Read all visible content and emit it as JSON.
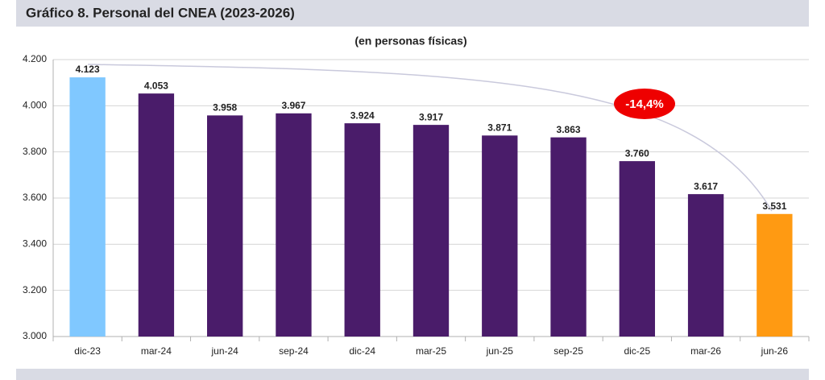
{
  "header": {
    "title": "Gráfico 8. Personal del CNEA (2023-2026)"
  },
  "chart_data": {
    "type": "bar",
    "title": "(en personas físicas)",
    "categories": [
      "dic-23",
      "mar-24",
      "jun-24",
      "sep-24",
      "dic-24",
      "mar-25",
      "jun-25",
      "sep-25",
      "dic-25",
      "mar-26",
      "jun-26"
    ],
    "values": [
      4123,
      4053,
      3958,
      3967,
      3924,
      3917,
      3871,
      3863,
      3760,
      3617,
      3531
    ],
    "value_labels": [
      "4.123",
      "4.053",
      "3.958",
      "3.967",
      "3.924",
      "3.917",
      "3.871",
      "3.863",
      "3.760",
      "3.617",
      "3.531"
    ],
    "colors": [
      "#80c8ff",
      "#4a1c6a",
      "#4a1c6a",
      "#4a1c6a",
      "#4a1c6a",
      "#4a1c6a",
      "#4a1c6a",
      "#4a1c6a",
      "#4a1c6a",
      "#4a1c6a",
      "#ff9a12"
    ],
    "ylim": [
      3000,
      4200
    ],
    "yticks": [
      {
        "value": 3000,
        "label": "3.000"
      },
      {
        "value": 3200,
        "label": "3.200"
      },
      {
        "value": 3400,
        "label": "3.400"
      },
      {
        "value": 3600,
        "label": "3.600"
      },
      {
        "value": 3800,
        "label": "3.800"
      },
      {
        "value": 4000,
        "label": "4.000"
      },
      {
        "value": 4200,
        "label": "4.200"
      }
    ],
    "grid": true,
    "annotation": "-14,4%"
  }
}
